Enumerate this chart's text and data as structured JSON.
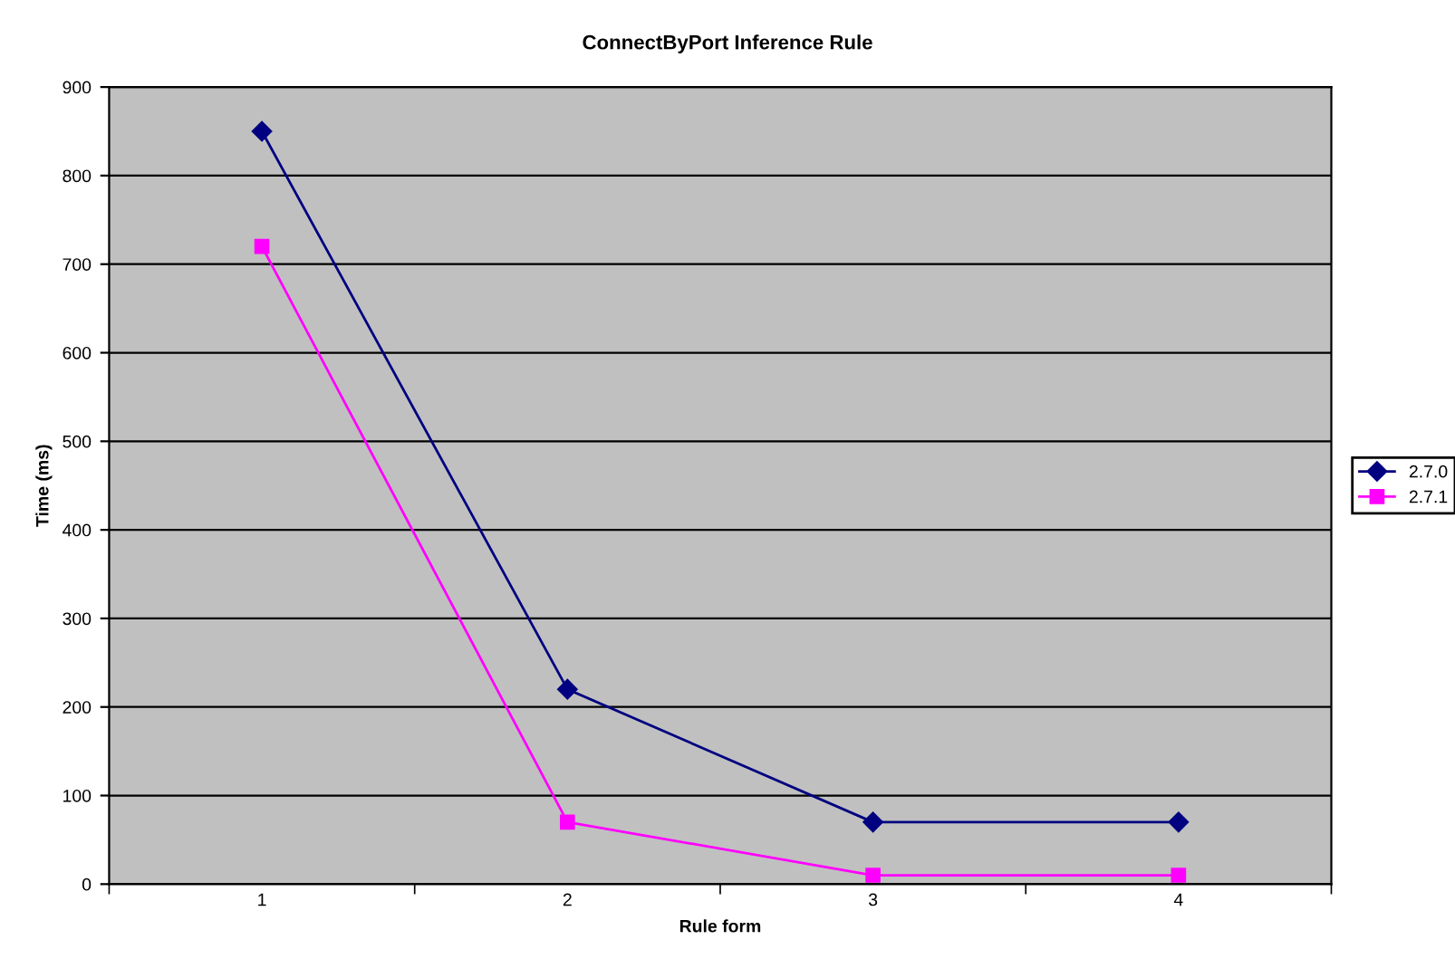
{
  "chart_data": {
    "type": "line",
    "title": "ConnectByPort Inference Rule",
    "xlabel": "Rule form",
    "ylabel": "Time (ms)",
    "categories": [
      "1",
      "2",
      "3",
      "4"
    ],
    "series": [
      {
        "name": "2.7.0",
        "color": "#000080",
        "marker": "diamond",
        "values": [
          850,
          220,
          70,
          70
        ]
      },
      {
        "name": "2.7.1",
        "color": "#ff00ff",
        "marker": "square",
        "values": [
          720,
          70,
          10,
          10
        ]
      }
    ],
    "ylim": [
      0,
      900
    ],
    "yticks": [
      0,
      100,
      200,
      300,
      400,
      500,
      600,
      700,
      800,
      900
    ],
    "grid": "y",
    "legend": "right",
    "line_style": "solid"
  }
}
